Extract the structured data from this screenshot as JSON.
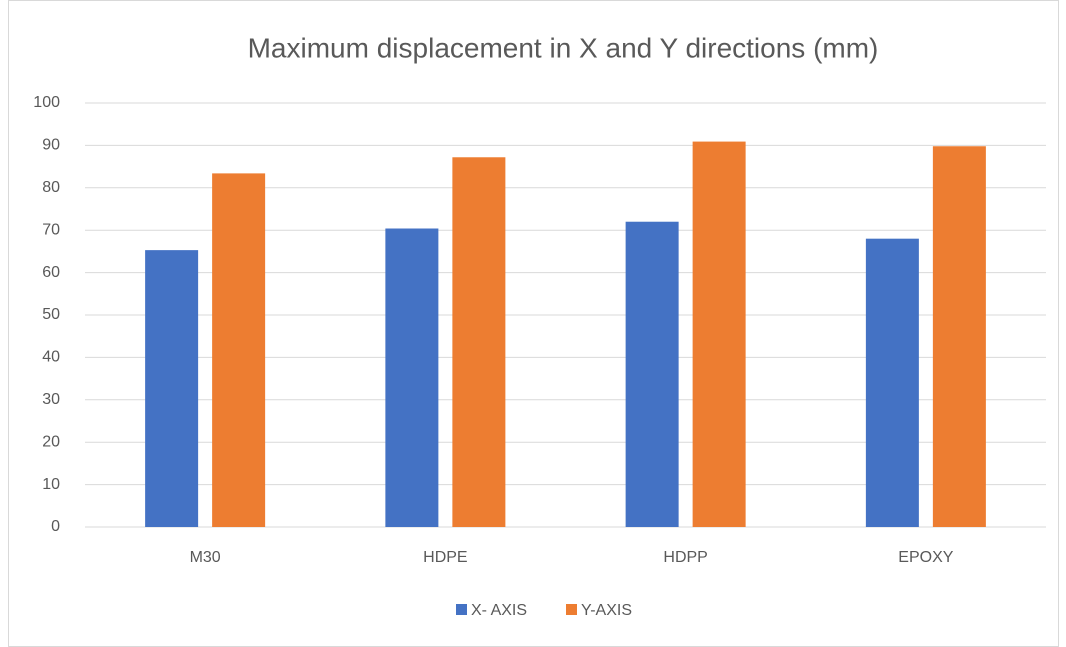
{
  "chart_data": {
    "type": "bar",
    "title": "Maximum displacement in X and Y directions (mm)",
    "categories": [
      "M30",
      "HDPE",
      "HDPP",
      "EPOXY"
    ],
    "series": [
      {
        "name": "X- AXIS",
        "color": "#4472c4",
        "values": [
          65.3,
          70.4,
          72.0,
          68.0
        ]
      },
      {
        "name": "Y-AXIS",
        "color": "#ed7d31",
        "values": [
          83.4,
          87.2,
          90.9,
          89.8
        ]
      }
    ],
    "ylim": [
      0,
      100
    ],
    "yticks": [
      0,
      10,
      20,
      30,
      40,
      50,
      60,
      70,
      80,
      90,
      100
    ],
    "grid": true,
    "legend": "bottom"
  }
}
